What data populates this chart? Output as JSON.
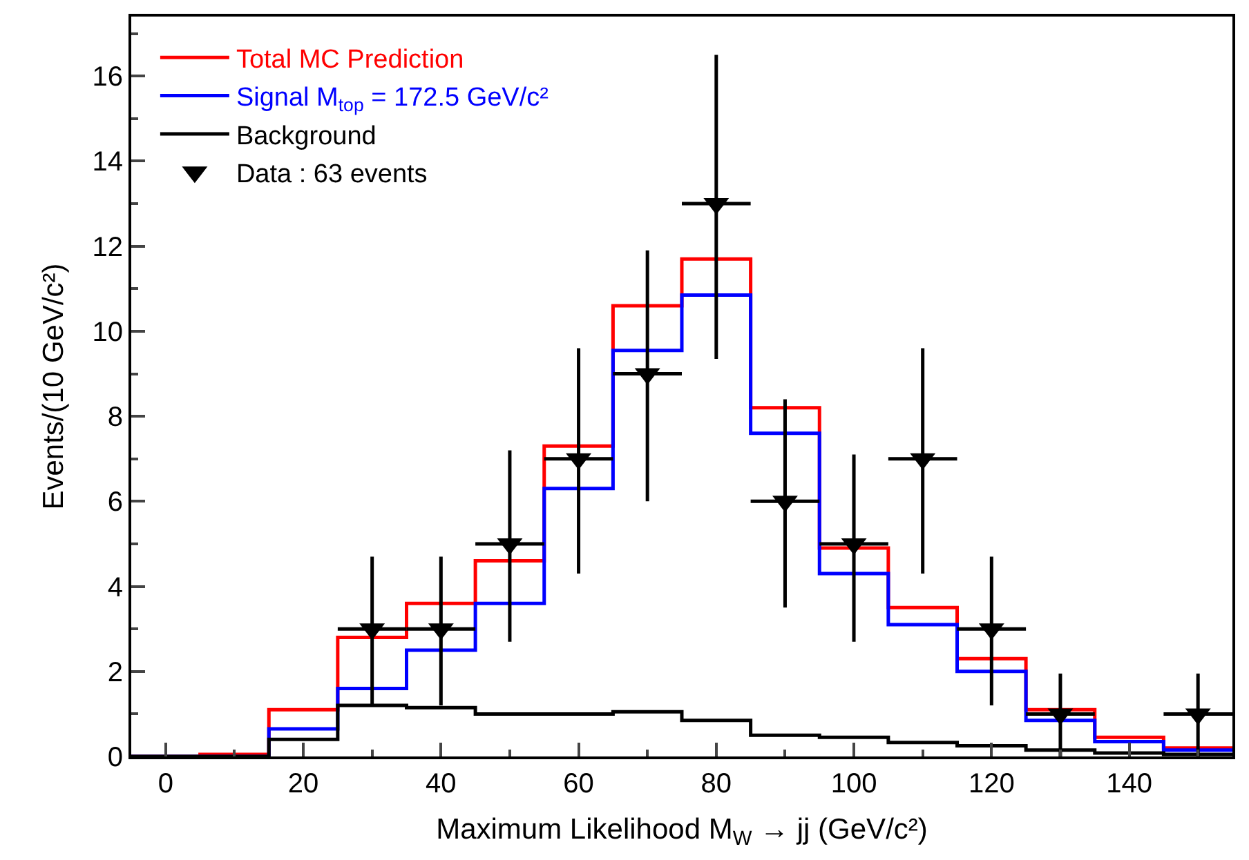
{
  "chart_data": {
    "type": "histogram",
    "xlabel": "Maximum Likelihood M$_{W}$ → jj (GeV/c²)",
    "ylabel": "Events/(10 GeV/c²)",
    "bins": [
      -5,
      5,
      15,
      25,
      35,
      45,
      55,
      65,
      75,
      85,
      95,
      105,
      115,
      125,
      135,
      145,
      155
    ],
    "series": [
      {
        "name": "Total MC Prediction",
        "color": "#ff0000",
        "values": [
          0,
          0.05,
          1.1,
          2.8,
          3.6,
          4.6,
          7.3,
          10.6,
          11.7,
          8.2,
          4.9,
          3.5,
          2.3,
          1.1,
          0.45,
          0.2
        ]
      },
      {
        "name": "Signal M$_{top}$ = 172.5 GeV/c²",
        "color": "#0000ff",
        "values": [
          0,
          0,
          0.65,
          1.6,
          2.5,
          3.6,
          6.3,
          9.55,
          10.85,
          7.6,
          4.3,
          3.1,
          2.0,
          0.85,
          0.35,
          0.15
        ]
      },
      {
        "name": "Background",
        "color": "#000000",
        "values": [
          0,
          0,
          0.4,
          1.2,
          1.15,
          1.0,
          1.0,
          1.05,
          0.85,
          0.5,
          0.45,
          0.33,
          0.25,
          0.15,
          0.08,
          0.05
        ]
      },
      {
        "name": "Data : 63 events",
        "type": "scatter",
        "marker": "triangle",
        "color": "#000000",
        "x": [
          30,
          40,
          50,
          60,
          70,
          80,
          90,
          100,
          110,
          120,
          130,
          150
        ],
        "values": [
          3,
          3,
          5,
          7,
          9,
          13,
          6,
          5,
          7,
          3,
          1,
          1
        ],
        "errors": [
          [
            1.2,
            4.7
          ],
          [
            1.2,
            4.7
          ],
          [
            2.7,
            7.2
          ],
          [
            4.3,
            9.6
          ],
          [
            6.0,
            11.9
          ],
          [
            9.35,
            16.5
          ],
          [
            3.5,
            8.4
          ],
          [
            2.7,
            7.1
          ],
          [
            4.3,
            9.6
          ],
          [
            1.2,
            4.7
          ],
          [
            0,
            1.95
          ],
          [
            0,
            1.95
          ]
        ],
        "xerrors": [
          5,
          5,
          5,
          5,
          5,
          5,
          5,
          5,
          5,
          5,
          5,
          5
        ]
      }
    ],
    "xlim": [
      -5,
      155
    ],
    "xticks": [
      0,
      20,
      40,
      60,
      80,
      100,
      120,
      140
    ],
    "ylim": [
      0,
      17.4
    ],
    "yticks": [
      0,
      2,
      4,
      6,
      8,
      10,
      12,
      14,
      16
    ],
    "legend": "top left"
  }
}
